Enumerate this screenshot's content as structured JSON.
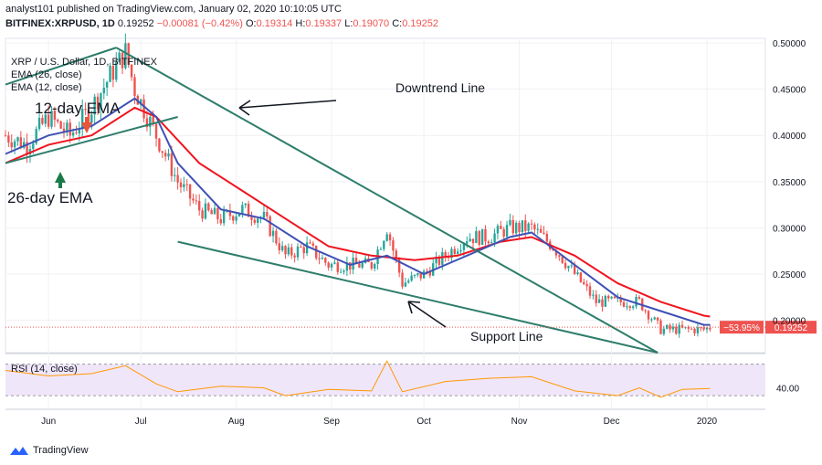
{
  "header": {
    "published": "analyst101 published on TradingView.com, January 02, 2020 10:10:05 UTC",
    "symbol": "BITFINEX:XRPUSD, 1D",
    "price": "0.19252",
    "change": "−0.00081 (−0.42%)",
    "open_label": "O:",
    "open": "0.19314",
    "high_label": "H:",
    "high": "0.19337",
    "low_label": "L:",
    "low": "0.19070",
    "close_label": "C:",
    "close": "0.19252"
  },
  "legend": {
    "pair": "XRP / U.S. Dollar, 1D, BITFINEX",
    "ema26": "EMA (26, close)",
    "ema12": "EMA (12, close)",
    "rsi": "RSI (14, close)"
  },
  "annotations": {
    "ema12": "12-day EMA",
    "ema26": "26-day EMA",
    "downtrend": "Downtrend Line",
    "support": "Support Line"
  },
  "price_badge": {
    "pct": "−53.95%",
    "value": "0.19252"
  },
  "footer": {
    "brand": "TradingView"
  },
  "colors": {
    "up": "#26a69a",
    "down": "#ef5350",
    "ema12": "#3f51b5",
    "ema26": "#f0141e",
    "trend": "#2e7d6b",
    "rsi": "#ff9800",
    "rsi_band": "#f0e6fa"
  },
  "chart_data": {
    "type": "candlestick",
    "title": "XRP / U.S. Dollar, 1D, BITFINEX",
    "x_ticks": [
      "Jun",
      "Jul",
      "Aug",
      "Sep",
      "Oct",
      "Nov",
      "Dec",
      "2020"
    ],
    "y_ticks": [
      "0.50000",
      "0.45000",
      "0.40000",
      "0.35000",
      "0.30000",
      "0.25000",
      "0.20000"
    ],
    "ylim": [
      0.165,
      0.505
    ],
    "rsi_ticks": [
      "40.00"
    ],
    "rsi_ylim": [
      15,
      80
    ],
    "x_range": [
      "2019-05-18",
      "2020-01-20"
    ],
    "closes": [
      [
        "2019-05-18",
        0.4
      ],
      [
        "2019-05-25",
        0.39
      ],
      [
        "2019-06-01",
        0.42
      ],
      [
        "2019-06-08",
        0.4
      ],
      [
        "2019-06-15",
        0.43
      ],
      [
        "2019-06-22",
        0.47
      ],
      [
        "2019-06-26",
        0.49
      ],
      [
        "2019-06-29",
        0.45
      ],
      [
        "2019-07-06",
        0.4
      ],
      [
        "2019-07-13",
        0.35
      ],
      [
        "2019-07-20",
        0.32
      ],
      [
        "2019-07-27",
        0.31
      ],
      [
        "2019-08-03",
        0.32
      ],
      [
        "2019-08-10",
        0.31
      ],
      [
        "2019-08-17",
        0.27
      ],
      [
        "2019-08-24",
        0.28
      ],
      [
        "2019-08-31",
        0.26
      ],
      [
        "2019-09-07",
        0.26
      ],
      [
        "2019-09-14",
        0.26
      ],
      [
        "2019-09-19",
        0.3
      ],
      [
        "2019-09-24",
        0.24
      ],
      [
        "2019-10-01",
        0.25
      ],
      [
        "2019-10-08",
        0.27
      ],
      [
        "2019-10-15",
        0.29
      ],
      [
        "2019-10-22",
        0.29
      ],
      [
        "2019-10-29",
        0.3
      ],
      [
        "2019-11-05",
        0.3
      ],
      [
        "2019-11-12",
        0.28
      ],
      [
        "2019-11-19",
        0.25
      ],
      [
        "2019-11-26",
        0.22
      ],
      [
        "2019-12-03",
        0.22
      ],
      [
        "2019-12-10",
        0.22
      ],
      [
        "2019-12-17",
        0.19
      ],
      [
        "2019-12-24",
        0.19
      ],
      [
        "2019-12-31",
        0.19
      ],
      [
        "2020-01-02",
        0.19252
      ]
    ],
    "ema12": [
      [
        "2019-05-18",
        0.38
      ],
      [
        "2019-06-01",
        0.4
      ],
      [
        "2019-06-15",
        0.41
      ],
      [
        "2019-06-29",
        0.44
      ],
      [
        "2019-07-06",
        0.42
      ],
      [
        "2019-07-13",
        0.37
      ],
      [
        "2019-07-27",
        0.32
      ],
      [
        "2019-08-10",
        0.31
      ],
      [
        "2019-08-24",
        0.28
      ],
      [
        "2019-09-07",
        0.26
      ],
      [
        "2019-09-19",
        0.27
      ],
      [
        "2019-10-01",
        0.25
      ],
      [
        "2019-10-15",
        0.27
      ],
      [
        "2019-10-29",
        0.29
      ],
      [
        "2019-11-05",
        0.295
      ],
      [
        "2019-11-19",
        0.26
      ],
      [
        "2019-12-03",
        0.225
      ],
      [
        "2019-12-17",
        0.21
      ],
      [
        "2019-12-31",
        0.195
      ],
      [
        "2020-01-02",
        0.195
      ]
    ],
    "ema26": [
      [
        "2019-05-18",
        0.37
      ],
      [
        "2019-06-01",
        0.39
      ],
      [
        "2019-06-15",
        0.4
      ],
      [
        "2019-06-29",
        0.43
      ],
      [
        "2019-07-06",
        0.42
      ],
      [
        "2019-07-20",
        0.37
      ],
      [
        "2019-08-03",
        0.34
      ],
      [
        "2019-08-17",
        0.31
      ],
      [
        "2019-08-31",
        0.28
      ],
      [
        "2019-09-14",
        0.27
      ],
      [
        "2019-09-28",
        0.265
      ],
      [
        "2019-10-12",
        0.27
      ],
      [
        "2019-10-26",
        0.285
      ],
      [
        "2019-11-05",
        0.29
      ],
      [
        "2019-11-19",
        0.27
      ],
      [
        "2019-12-03",
        0.24
      ],
      [
        "2019-12-17",
        0.22
      ],
      [
        "2019-12-31",
        0.205
      ],
      [
        "2020-01-02",
        0.204
      ]
    ],
    "rsi": [
      [
        "2019-05-18",
        62
      ],
      [
        "2019-06-01",
        55
      ],
      [
        "2019-06-15",
        58
      ],
      [
        "2019-06-26",
        68
      ],
      [
        "2019-07-06",
        45
      ],
      [
        "2019-07-13",
        35
      ],
      [
        "2019-07-27",
        42
      ],
      [
        "2019-08-10",
        40
      ],
      [
        "2019-08-17",
        30
      ],
      [
        "2019-08-31",
        38
      ],
      [
        "2019-09-14",
        36
      ],
      [
        "2019-09-19",
        74
      ],
      [
        "2019-09-24",
        35
      ],
      [
        "2019-10-08",
        48
      ],
      [
        "2019-10-22",
        52
      ],
      [
        "2019-11-05",
        54
      ],
      [
        "2019-11-19",
        36
      ],
      [
        "2019-12-03",
        30
      ],
      [
        "2019-12-10",
        40
      ],
      [
        "2019-12-17",
        28
      ],
      [
        "2019-12-24",
        38
      ],
      [
        "2020-01-02",
        39
      ]
    ],
    "trendlines": [
      {
        "name": "downtrend",
        "from": [
          "2019-06-23",
          0.495
        ],
        "to": [
          "2019-12-16",
          0.165
        ]
      },
      {
        "name": "support",
        "from": [
          "2019-07-13",
          0.285
        ],
        "to": [
          "2019-12-16",
          0.165
        ]
      },
      {
        "name": "early-channel-top",
        "from": [
          "2019-05-18",
          0.455
        ],
        "to": [
          "2019-06-23",
          0.495
        ]
      },
      {
        "name": "early-channel-bottom",
        "from": [
          "2019-05-18",
          0.37
        ],
        "to": [
          "2019-07-13",
          0.42
        ]
      }
    ]
  }
}
